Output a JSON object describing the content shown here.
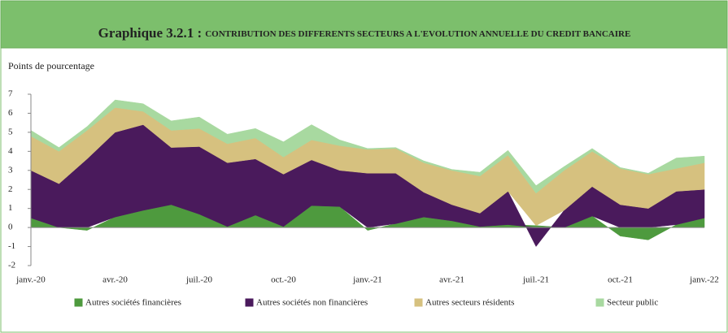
{
  "chart_data": {
    "type": "stacked_area",
    "title_label": "Graphique 3.2.1 :",
    "title": "CONTRIBUTION DES DIFFERENTS SECTEURS A L'EVOLUTION ANNUELLE DU CREDIT BANCAIRE",
    "ylabel": "Points de pourcentage",
    "categories": [
      "janv.-20",
      null,
      null,
      "avr.-20",
      null,
      null,
      "juil.-20",
      null,
      null,
      "oct.-20",
      null,
      null,
      "janv.-21",
      null,
      null,
      "avr.-21",
      null,
      null,
      "juil.-21",
      null,
      null,
      "oct.-21",
      null,
      null,
      "janv.-22"
    ],
    "series": [
      {
        "name": "Autres sociétés financières",
        "color": "#4e9a3e",
        "values": [
          0.5,
          0.0,
          -0.15,
          0.55,
          0.9,
          1.2,
          0.7,
          0.05,
          0.65,
          0.05,
          1.15,
          1.1,
          -0.15,
          0.2,
          0.55,
          0.35,
          0.05,
          0.15,
          0.1,
          0.0,
          0.6,
          -0.45,
          -0.65,
          0.15,
          0.5
        ]
      },
      {
        "name": "Autres sociétés non financières",
        "color": "#4a1a5c",
        "values": [
          2.5,
          2.3,
          3.6,
          4.45,
          4.5,
          3.0,
          3.55,
          3.35,
          2.95,
          2.75,
          2.4,
          1.9,
          2.85,
          2.65,
          1.3,
          0.85,
          0.7,
          1.75,
          -1.0,
          0.9,
          1.55,
          1.2,
          1.0,
          1.75,
          1.5
        ]
      },
      {
        "name": "Autres secteurs résidents",
        "color": "#d6c17f",
        "values": [
          1.8,
          1.7,
          1.5,
          1.3,
          0.7,
          0.9,
          0.95,
          1.0,
          1.1,
          0.9,
          1.05,
          1.3,
          1.25,
          1.3,
          1.55,
          1.8,
          1.95,
          1.9,
          1.7,
          2.1,
          1.85,
          1.9,
          1.8,
          1.2,
          1.4
        ]
      },
      {
        "name": "Secteur public",
        "color": "#a8d9a0",
        "values": [
          0.3,
          0.2,
          0.2,
          0.4,
          0.4,
          0.5,
          0.6,
          0.5,
          0.5,
          0.8,
          0.8,
          0.3,
          0.05,
          0.05,
          0.1,
          0.05,
          0.2,
          0.25,
          0.4,
          0.2,
          0.15,
          0.05,
          0.05,
          0.55,
          0.35
        ]
      }
    ],
    "ylim": [
      -2,
      7
    ],
    "yticks": [
      -2,
      -1,
      0,
      1,
      2,
      3,
      4,
      5,
      6,
      7
    ]
  }
}
